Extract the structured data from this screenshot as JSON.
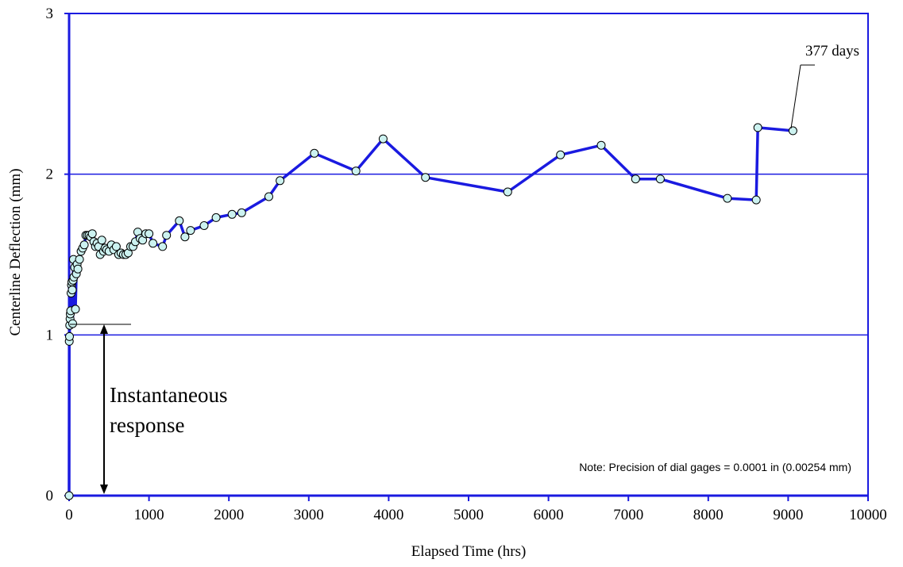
{
  "chart_data": {
    "type": "line",
    "title": "",
    "xlabel": "Elapsed Time (hrs)",
    "ylabel": "Centerline Deflection (mm)",
    "xlim": [
      0,
      10000
    ],
    "ylim": [
      0,
      3
    ],
    "xticks": [
      "0",
      "1000",
      "2000",
      "3000",
      "4000",
      "5000",
      "6000",
      "7000",
      "8000",
      "9000",
      "10000"
    ],
    "yticks": [
      "0",
      "1",
      "2",
      "3"
    ],
    "grid": "horizontal",
    "colors": {
      "line": "#1a1ae0",
      "marker_fill": "#ccf2f0",
      "marker_edge": "#000000",
      "frame": "#1a1ae0"
    },
    "series": [
      {
        "x": [
          0,
          2,
          5,
          8,
          12,
          15,
          20,
          25,
          30,
          35,
          40,
          45,
          50,
          55,
          60,
          70,
          80,
          90,
          100,
          110,
          130,
          150,
          170,
          190,
          210,
          230,
          250,
          270,
          290,
          310,
          330,
          350,
          370,
          390,
          410,
          430,
          450,
          470,
          500,
          530,
          560,
          590,
          620,
          650,
          680,
          710,
          740,
          770,
          800,
          830,
          860,
          890,
          920,
          960,
          1000,
          1050,
          1170,
          1220,
          1380,
          1450,
          1520,
          1690,
          1840,
          2040,
          2160,
          2500,
          2640,
          3070,
          3590,
          3930,
          4460,
          5490,
          6150,
          6660,
          7090,
          7400,
          8240,
          8600,
          8620,
          9060
        ],
        "y": [
          0,
          0.96,
          0.99,
          1.06,
          1.1,
          1.13,
          1.15,
          1.26,
          1.31,
          1.33,
          1.28,
          1.07,
          1.34,
          1.47,
          1.36,
          1.42,
          1.16,
          1.38,
          1.44,
          1.41,
          1.47,
          1.52,
          1.54,
          1.56,
          1.62,
          1.62,
          1.62,
          1.61,
          1.63,
          1.58,
          1.55,
          1.57,
          1.55,
          1.5,
          1.59,
          1.52,
          1.54,
          1.53,
          1.52,
          1.56,
          1.53,
          1.55,
          1.5,
          1.51,
          1.5,
          1.5,
          1.51,
          1.55,
          1.55,
          1.58,
          1.64,
          1.6,
          1.59,
          1.63,
          1.63,
          1.57,
          1.55,
          1.62,
          1.71,
          1.61,
          1.65,
          1.68,
          1.73,
          1.75,
          1.76,
          1.86,
          1.96,
          2.13,
          2.02,
          2.22,
          1.98,
          1.89,
          2.12,
          2.18,
          1.97,
          1.97,
          1.85,
          1.84,
          2.29,
          2.27
        ]
      }
    ],
    "annotations": {
      "instant_line1": "Instantaneous",
      "instant_line2": "response",
      "days": "377 days",
      "note": "Note: Precision of dial gages = 0.0001 in (0.00254 mm)"
    }
  }
}
